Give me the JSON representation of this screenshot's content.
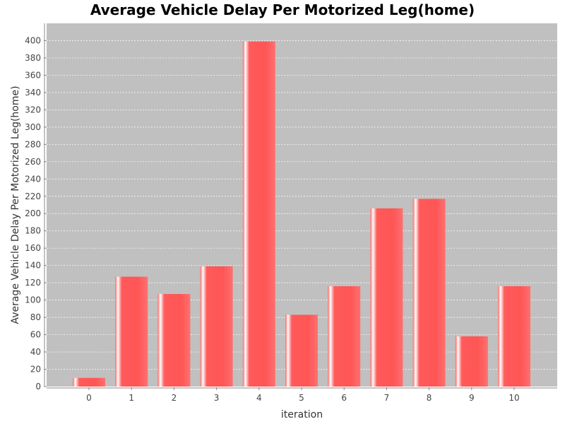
{
  "chart_data": {
    "type": "bar",
    "title": "Average Vehicle Delay Per Motorized Leg(home)",
    "xlabel": "iteration",
    "ylabel": "Average Vehicle Delay Per Motorized Leg(home)",
    "categories": [
      "0",
      "1",
      "2",
      "3",
      "4",
      "5",
      "6",
      "7",
      "8",
      "9",
      "10"
    ],
    "values": [
      10,
      127,
      107,
      139,
      399,
      83,
      116,
      206,
      217,
      58,
      116
    ],
    "ylim": [
      0,
      420
    ],
    "yticks": [
      0,
      20,
      40,
      60,
      80,
      100,
      120,
      140,
      160,
      180,
      200,
      220,
      240,
      260,
      280,
      300,
      320,
      340,
      360,
      380,
      400
    ],
    "grid": true,
    "legend": "none",
    "colors": {
      "bar": "#ff5555",
      "bar_highlight": "#ffffff",
      "plot_background": "#c0c0c0",
      "gridline": "#ffffff"
    }
  }
}
